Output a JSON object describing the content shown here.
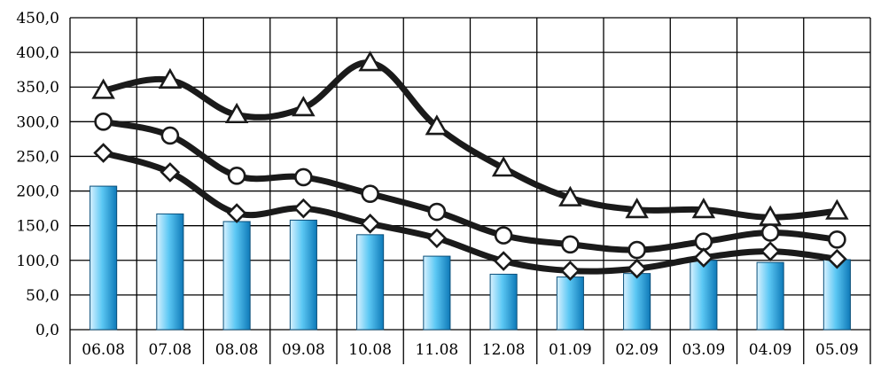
{
  "chart_data": {
    "type": "bar",
    "categories": [
      "06.08",
      "07.08",
      "08.08",
      "09.08",
      "10.08",
      "11.08",
      "12.08",
      "01.09",
      "02.09",
      "03.09",
      "04.09",
      "05.09"
    ],
    "ylim": [
      0,
      450
    ],
    "y_ticks": [
      "0,0",
      "50,0",
      "100,0",
      "150,0",
      "200,0",
      "250,0",
      "300,0",
      "350,0",
      "400,0",
      "450,0"
    ],
    "grid": true,
    "legend": "none",
    "colors": {
      "bar_light": "#d8f1ff",
      "bar_mid": "#5cc8f4",
      "bar_dark": "#0e79b8",
      "line": "#1a1a1a",
      "grid": "#000000"
    },
    "series": [
      {
        "type": "bar",
        "values": [
          207,
          167,
          156,
          158,
          137,
          106,
          80,
          76,
          81,
          100,
          97,
          101
        ]
      },
      {
        "type": "line",
        "marker": "triangle",
        "values": [
          345,
          360,
          310,
          320,
          385,
          293,
          233,
          190,
          173,
          173,
          162,
          171
        ]
      },
      {
        "type": "line",
        "marker": "circle",
        "values": [
          300,
          280,
          222,
          220,
          196,
          170,
          136,
          123,
          115,
          127,
          140,
          130
        ]
      },
      {
        "type": "line",
        "marker": "diamond",
        "values": [
          255,
          227,
          168,
          175,
          153,
          132,
          99,
          85,
          88,
          104,
          113,
          102
        ]
      }
    ]
  }
}
